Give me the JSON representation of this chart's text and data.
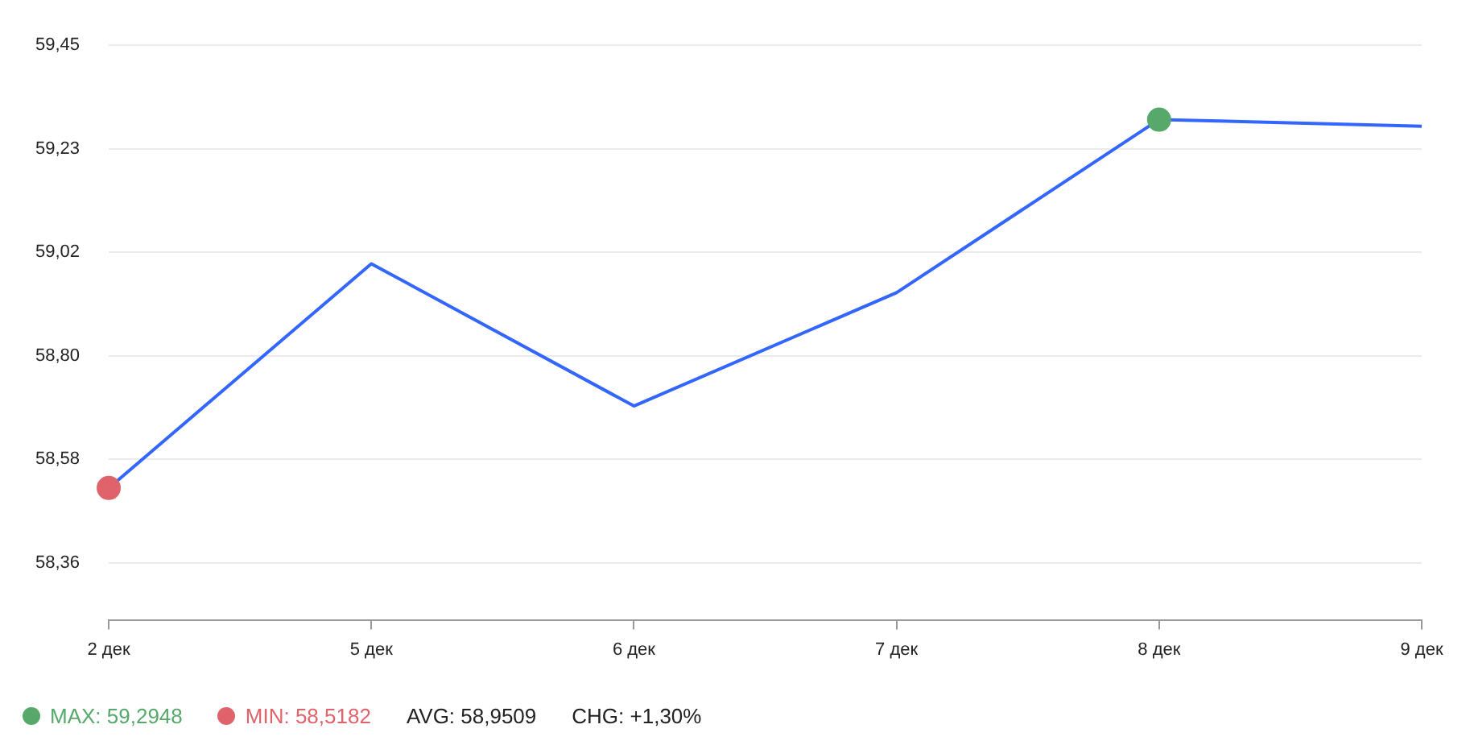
{
  "chart_data": {
    "type": "line",
    "categories": [
      "2 дек",
      "5 дек",
      "6 дек",
      "7 дек",
      "8 дек",
      "9 дек"
    ],
    "series": [
      {
        "color": "#3366ff",
        "marker": "none",
        "values": [
          58.518,
          58.991,
          58.691,
          58.93,
          59.295,
          59.281
        ]
      },
      {
        "type": "scatter",
        "marker": "circle",
        "name": "MAX: 59,2948",
        "color": "#57a96b",
        "values": [
          null,
          null,
          null,
          null,
          59.2948,
          null
        ]
      },
      {
        "type": "scatter",
        "marker": "circle",
        "name": "MIN: 58,5182",
        "color": "#e0636b",
        "values": [
          58.5182,
          null,
          null,
          null,
          null,
          null
        ]
      }
    ],
    "ylim": [
      58.24,
      59.452
    ],
    "yticks": [
      {
        "value": 58.36,
        "label": "58,36"
      },
      {
        "value": 58.5784,
        "label": "58,58"
      },
      {
        "value": 58.7968,
        "label": "58,80"
      },
      {
        "value": 59.0152,
        "label": "59,02"
      },
      {
        "value": 59.2336,
        "label": "59,23"
      },
      {
        "value": 59.452,
        "label": "59,45"
      }
    ],
    "grid": "y",
    "legend": "bottom left",
    "line_style": "solid",
    "annotations": [
      "AVG: 58,9509",
      "CHG: +1,30%"
    ]
  }
}
